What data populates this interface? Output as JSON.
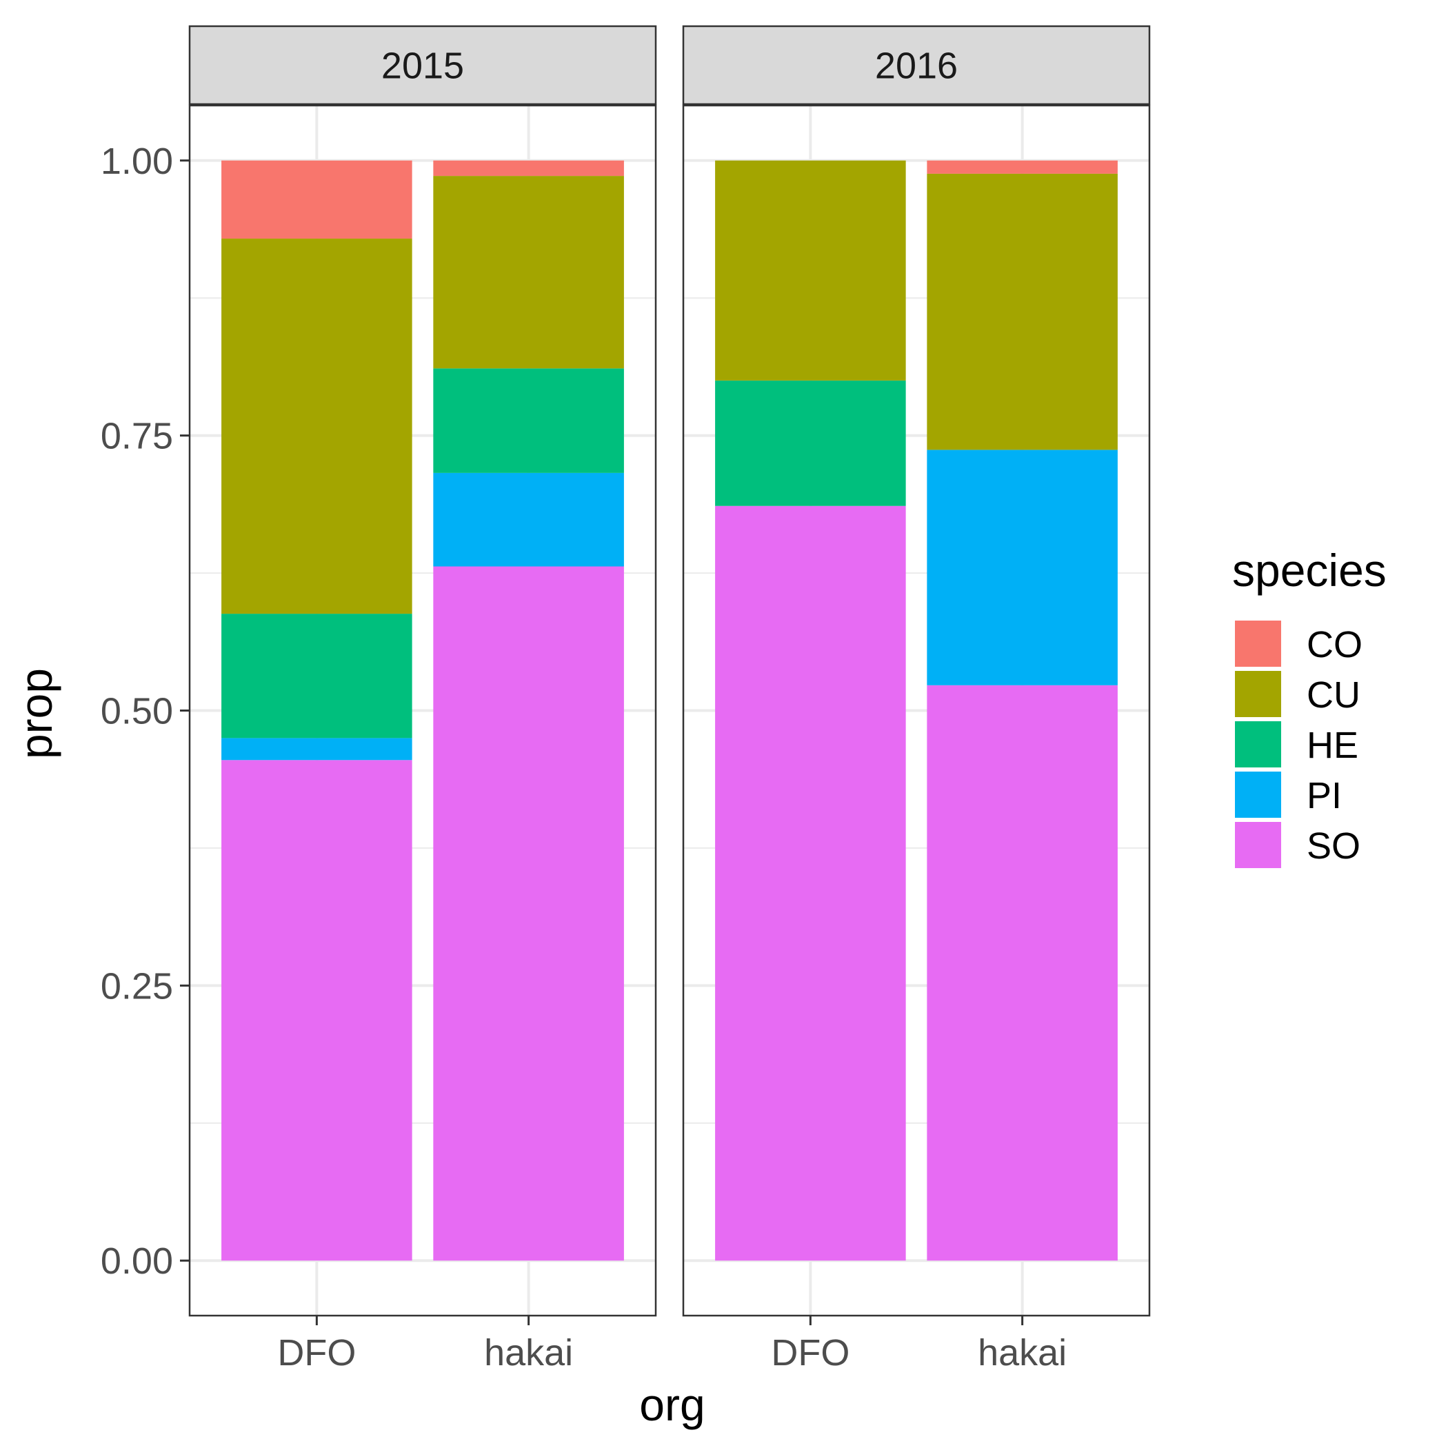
{
  "chart_data": {
    "type": "bar",
    "stacked": true,
    "facet_var": "year",
    "xlabel": "org",
    "ylabel": "prop",
    "ylim": [
      -0.05,
      1.05
    ],
    "yticks": [
      "0.00",
      "0.25",
      "0.50",
      "0.75",
      "1.00"
    ],
    "grid": true,
    "legend": {
      "title": "species",
      "position": "right",
      "entries": [
        {
          "name": "CO",
          "color": "#F8766D"
        },
        {
          "name": "CU",
          "color": "#A3A500"
        },
        {
          "name": "HE",
          "color": "#00BF7D"
        },
        {
          "name": "PI",
          "color": "#00B0F6"
        },
        {
          "name": "SO",
          "color": "#E76BF3"
        }
      ]
    },
    "stack_order_bottom_to_top": [
      "SO",
      "PI",
      "HE",
      "CU",
      "CO"
    ],
    "facets": [
      {
        "label": "2015",
        "categories": [
          "DFO",
          "hakai"
        ],
        "series": [
          {
            "name": "CO",
            "values": [
              0.071,
              0.014
            ]
          },
          {
            "name": "CU",
            "values": [
              0.341,
              0.175
            ]
          },
          {
            "name": "HE",
            "values": [
              0.113,
              0.095
            ]
          },
          {
            "name": "PI",
            "values": [
              0.02,
              0.085
            ]
          },
          {
            "name": "SO",
            "values": [
              0.455,
              0.631
            ]
          }
        ]
      },
      {
        "label": "2016",
        "categories": [
          "DFO",
          "hakai"
        ],
        "series": [
          {
            "name": "CO",
            "values": [
              0.0,
              0.012
            ]
          },
          {
            "name": "CU",
            "values": [
              0.2,
              0.251
            ]
          },
          {
            "name": "HE",
            "values": [
              0.114,
              0.0
            ]
          },
          {
            "name": "PI",
            "values": [
              0.0,
              0.214
            ]
          },
          {
            "name": "SO",
            "values": [
              0.686,
              0.523
            ]
          }
        ]
      }
    ]
  }
}
